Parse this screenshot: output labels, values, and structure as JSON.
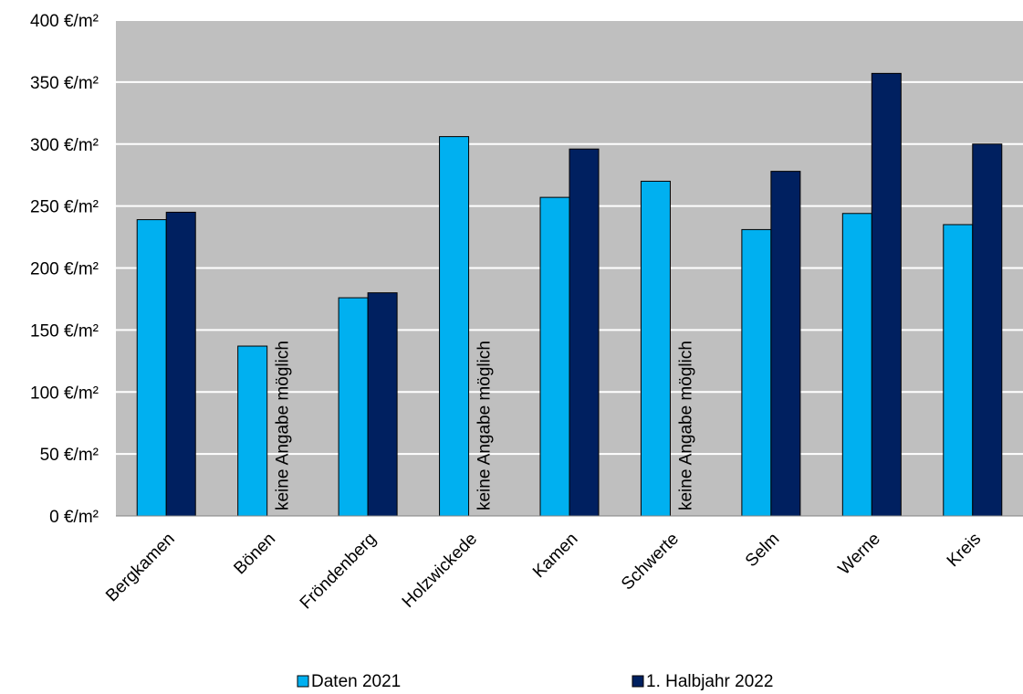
{
  "chart_data": {
    "type": "bar",
    "title": "",
    "xlabel": "",
    "ylabel": "",
    "unit_suffix": " €/m²",
    "ylim": [
      0,
      400
    ],
    "ytick_step": 50,
    "ytick_labels": [
      "0 €/m²",
      "50 €/m²",
      "100 €/m²",
      "150 €/m²",
      "200 €/m²",
      "250 €/m²",
      "300 €/m²",
      "350 €/m²",
      "400 €/m²"
    ],
    "grid": true,
    "legend_position": "bottom",
    "categories": [
      "Bergkamen",
      "Bönen",
      "Fröndenberg",
      "Holzwickede",
      "Kamen",
      "Schwerte",
      "Selm",
      "Werne",
      "Kreis"
    ],
    "series": [
      {
        "name": "Daten 2021",
        "color": "#00b0f0",
        "values": [
          239,
          137,
          176,
          306,
          257,
          270,
          231,
          244,
          235
        ]
      },
      {
        "name": "1. Halbjahr 2022",
        "color": "#002060",
        "values": [
          245,
          null,
          180,
          null,
          296,
          null,
          278,
          357,
          300
        ]
      }
    ],
    "missing_label": "keine Angabe möglich",
    "plot_background": "#bfbfbf",
    "gridline_color": "#ffffff"
  }
}
